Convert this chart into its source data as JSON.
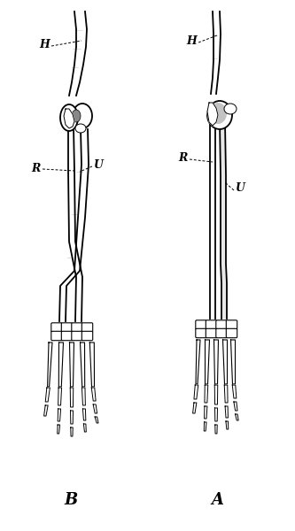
{
  "background_color": "#ffffff",
  "figsize": [
    3.33,
    6.0
  ],
  "dpi": 100,
  "label_B": "B",
  "label_A": "A",
  "label_H_left": "H",
  "label_R_left": "R",
  "label_U_left": "U",
  "label_H_right": "H",
  "label_R_right": "R",
  "label_U_right": "U",
  "text_color": "#000000",
  "line_color": "#000000",
  "lw_bone": 1.3,
  "lw_thin": 0.7,
  "bone_fill": "#f0f0f0",
  "dark_fill": "#555555",
  "mid_fill": "#999999"
}
